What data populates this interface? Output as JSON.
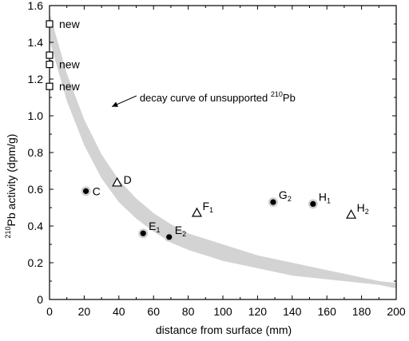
{
  "chart_data": {
    "type": "scatter",
    "xlabel": "distance from surface (mm)",
    "ylabel": {
      "prefix": "210",
      "main": "Pb activity (dpm/g)"
    },
    "xlim": [
      0,
      200
    ],
    "ylim": [
      0,
      1.6
    ],
    "xticks": [
      0,
      20,
      40,
      60,
      80,
      100,
      120,
      140,
      160,
      180,
      200
    ],
    "yticks": [
      0,
      0.2,
      0.4,
      0.6,
      0.8,
      1.0,
      1.2,
      1.4,
      1.6
    ],
    "ytick_labels": [
      "0",
      "0.2",
      "0.4",
      "0.6",
      "0.8",
      "1.0",
      "1.2",
      "1.4",
      "1.6"
    ],
    "grid": false,
    "band": {
      "description": "decay curve of unsupported 210Pb",
      "color": "#d3d3d3",
      "upper": [
        [
          0,
          1.56
        ],
        [
          10,
          1.23
        ],
        [
          20,
          0.98
        ],
        [
          30,
          0.79
        ],
        [
          40,
          0.65
        ],
        [
          50,
          0.55
        ],
        [
          60,
          0.47
        ],
        [
          70,
          0.41
        ],
        [
          80,
          0.36
        ],
        [
          90,
          0.33
        ],
        [
          100,
          0.3
        ],
        [
          110,
          0.27
        ],
        [
          120,
          0.24
        ],
        [
          130,
          0.22
        ],
        [
          140,
          0.2
        ],
        [
          150,
          0.18
        ],
        [
          160,
          0.16
        ],
        [
          170,
          0.14
        ],
        [
          180,
          0.12
        ],
        [
          190,
          0.1
        ],
        [
          200,
          0.09
        ]
      ],
      "lower": [
        [
          0,
          1.41
        ],
        [
          10,
          1.08
        ],
        [
          20,
          0.84
        ],
        [
          30,
          0.66
        ],
        [
          40,
          0.53
        ],
        [
          50,
          0.44
        ],
        [
          60,
          0.37
        ],
        [
          70,
          0.31
        ],
        [
          80,
          0.27
        ],
        [
          90,
          0.24
        ],
        [
          100,
          0.21
        ],
        [
          110,
          0.19
        ],
        [
          120,
          0.17
        ],
        [
          130,
          0.15
        ],
        [
          140,
          0.13
        ],
        [
          150,
          0.12
        ],
        [
          160,
          0.11
        ],
        [
          170,
          0.1
        ],
        [
          180,
          0.09
        ],
        [
          190,
          0.08
        ],
        [
          200,
          0.06
        ]
      ]
    },
    "annotation": {
      "text": "decay curve of unsupported ",
      "sup": "210",
      "tail": "Pb",
      "x": 52,
      "y": 1.1,
      "arrow_to": [
        36,
        1.05
      ]
    },
    "points": [
      {
        "x": 0,
        "y": 1.5,
        "marker": "square",
        "label": "new",
        "sub": ""
      },
      {
        "x": 0,
        "y": 1.33,
        "marker": "square",
        "label": "",
        "sub": ""
      },
      {
        "x": 0,
        "y": 1.28,
        "marker": "square",
        "label": "new",
        "sub": ""
      },
      {
        "x": 0,
        "y": 1.16,
        "marker": "square",
        "label": "new",
        "sub": ""
      },
      {
        "x": 21,
        "y": 0.59,
        "marker": "circle",
        "label": "C",
        "sub": ""
      },
      {
        "x": 39,
        "y": 0.635,
        "marker": "triangle",
        "label": "D",
        "sub": ""
      },
      {
        "x": 54,
        "y": 0.36,
        "marker": "circle",
        "label": "E",
        "sub": "1"
      },
      {
        "x": 69,
        "y": 0.34,
        "marker": "circle",
        "label": "E",
        "sub": "2"
      },
      {
        "x": 85,
        "y": 0.47,
        "marker": "triangle",
        "label": "F",
        "sub": "1"
      },
      {
        "x": 129,
        "y": 0.53,
        "marker": "circle",
        "label": "G",
        "sub": "2"
      },
      {
        "x": 152,
        "y": 0.52,
        "marker": "circle",
        "label": "H",
        "sub": "1"
      },
      {
        "x": 174,
        "y": 0.46,
        "marker": "triangle",
        "label": "H",
        "sub": "2"
      }
    ]
  }
}
